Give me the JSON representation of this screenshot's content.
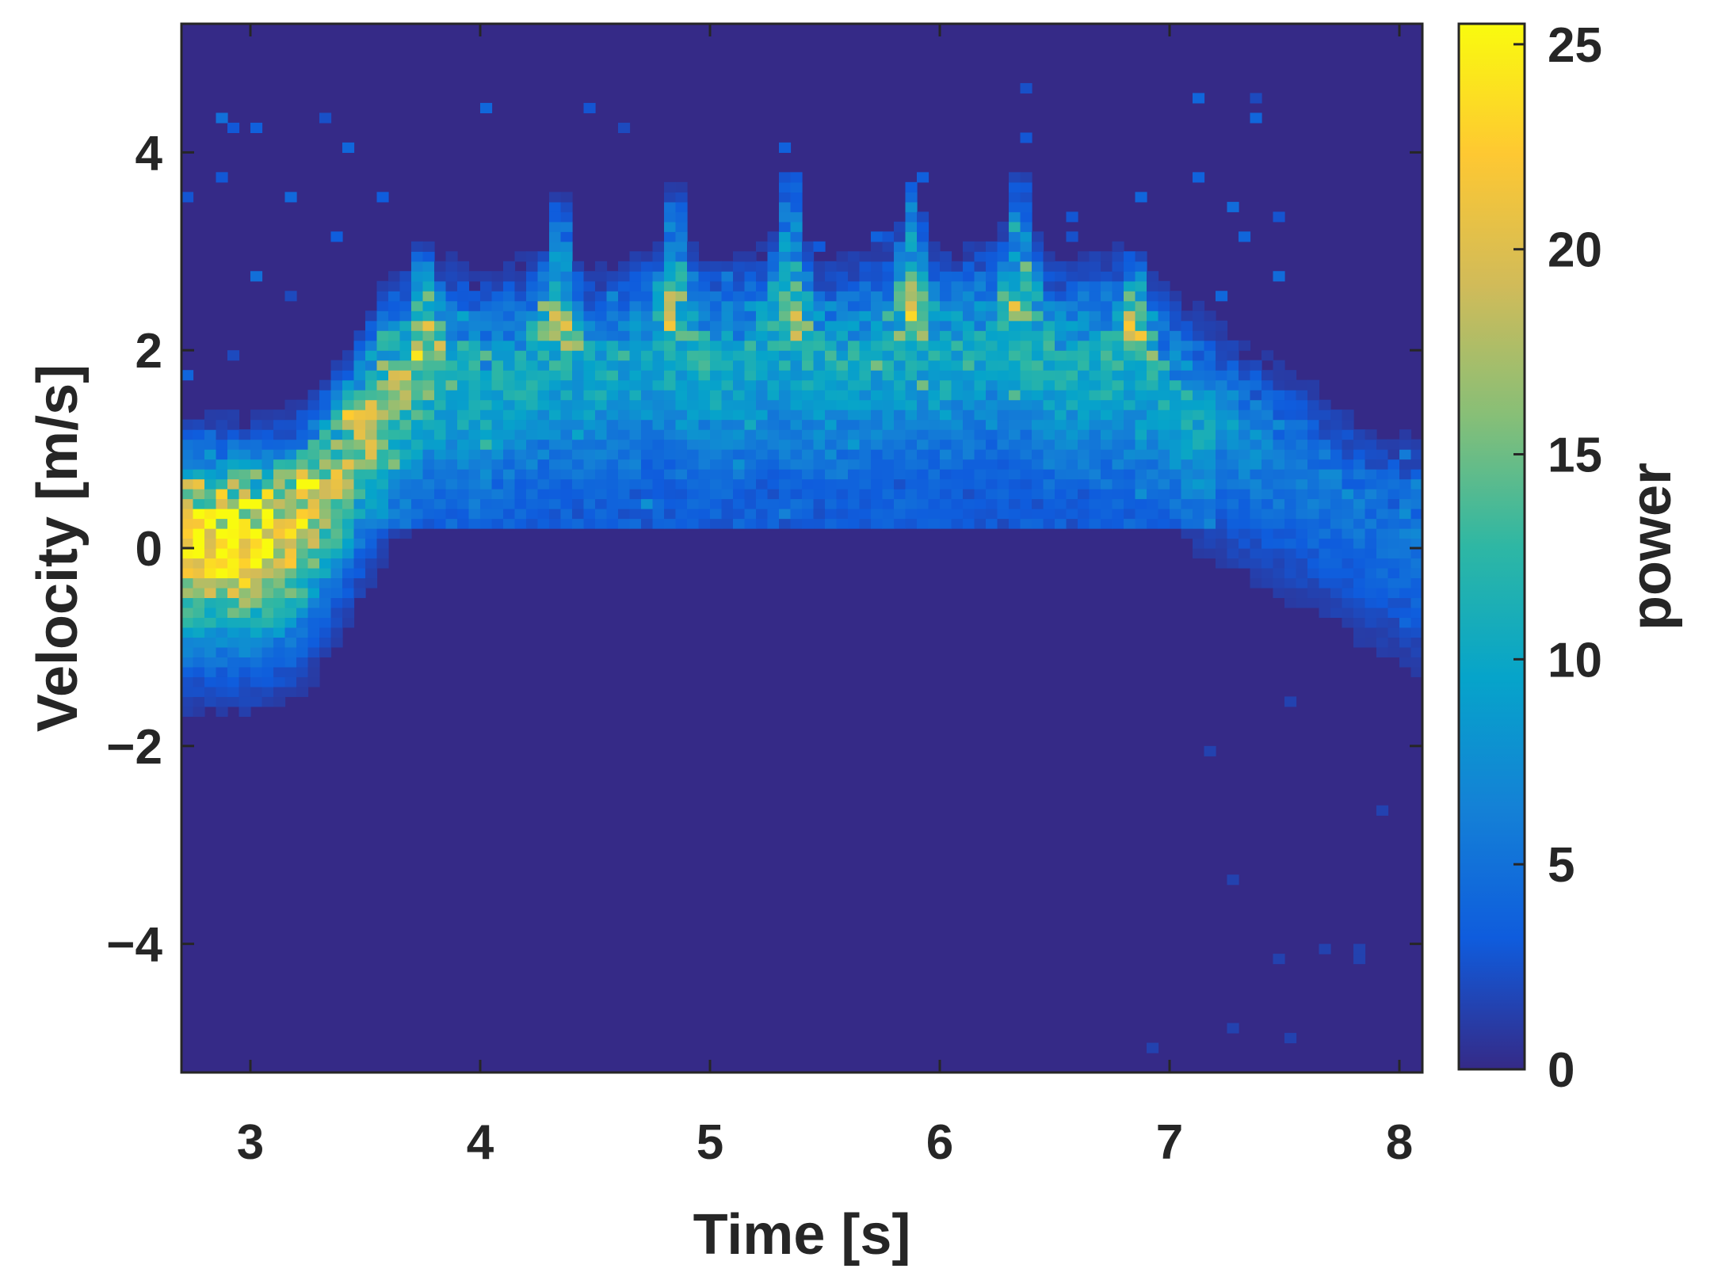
{
  "chart_data": {
    "type": "heatmap",
    "title": "",
    "xlabel": "Time [s]",
    "ylabel": "Velocity [m/s]",
    "colorbar_label": "power",
    "xlim": [
      2.7,
      8.1
    ],
    "ylim": [
      -5.3,
      5.3
    ],
    "clim": [
      0,
      25.5
    ],
    "colormap": "parula",
    "colormap_stops": [
      "#352a87",
      "#0f5cdd",
      "#1481d6",
      "#06a4ca",
      "#2eb7a4",
      "#87bf77",
      "#d1bb59",
      "#fec832",
      "#f9fb0e"
    ],
    "x_ticks": [
      3,
      4,
      5,
      6,
      7,
      8
    ],
    "x_tick_labels": [
      "3",
      "4",
      "5",
      "6",
      "7",
      "8"
    ],
    "y_ticks": [
      4,
      2,
      0,
      -2,
      -4
    ],
    "y_tick_labels": [
      "4",
      "2",
      "0",
      "−2",
      "−4"
    ],
    "colorbar_ticks": [
      0,
      5,
      10,
      15,
      20,
      25
    ],
    "colorbar_tick_labels": [
      "0",
      "5",
      "10",
      "15",
      "20",
      "25"
    ],
    "grid": false,
    "ridge_centerline": {
      "time_s": [
        2.7,
        3.0,
        3.2,
        3.4,
        3.6,
        3.8,
        4.0,
        4.3,
        4.5,
        4.8,
        5.0,
        5.3,
        5.5,
        5.8,
        6.0,
        6.3,
        6.5,
        6.8,
        7.0,
        7.3,
        7.6,
        7.9,
        8.1
      ],
      "velocity_ms": [
        0.2,
        0.2,
        0.3,
        0.9,
        1.7,
        2.0,
        1.8,
        2.1,
        1.9,
        2.2,
        2.0,
        2.2,
        2.0,
        2.2,
        2.1,
        2.3,
        2.0,
        2.1,
        1.7,
        1.2,
        0.8,
        0.3,
        0.2
      ],
      "power": [
        24,
        25,
        21,
        18,
        15,
        11,
        9,
        8,
        7,
        8,
        8,
        8,
        8,
        8,
        8,
        8,
        8,
        9,
        8,
        7,
        6,
        5,
        6
      ]
    },
    "spike_peaks": {
      "time_s": [
        3.75,
        4.35,
        4.85,
        5.35,
        5.88,
        6.35,
        6.85
      ],
      "velocity_ms": [
        3.1,
        3.6,
        3.7,
        3.9,
        3.7,
        3.9,
        3.0
      ]
    }
  }
}
